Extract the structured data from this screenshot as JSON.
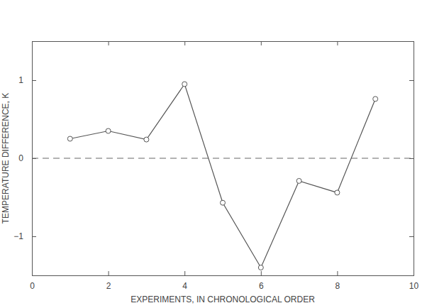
{
  "chart_data": {
    "type": "line",
    "x_label": "EXPERIMENTS, IN CHRONOLOGICAL ORDER",
    "y_label": "TEMPERATURE DIFFERENCE, K",
    "x": [
      1,
      2,
      3,
      4,
      5,
      6,
      7,
      8,
      9
    ],
    "values": [
      0.25,
      0.35,
      0.24,
      0.95,
      -0.57,
      -1.4,
      -0.29,
      -0.44,
      0.76
    ],
    "color": "#555555",
    "marker": "open-circle",
    "line_style": "solid",
    "xlim": [
      0,
      10
    ],
    "xticks": [
      0,
      2,
      4,
      6,
      8,
      10
    ],
    "ylim": [
      -1.5,
      1.5
    ],
    "yticks": [
      {
        "value": -1,
        "label": "−1"
      },
      0,
      1
    ],
    "reference_line": {
      "value": 0,
      "line_style": "dashed"
    },
    "grid": false
  }
}
